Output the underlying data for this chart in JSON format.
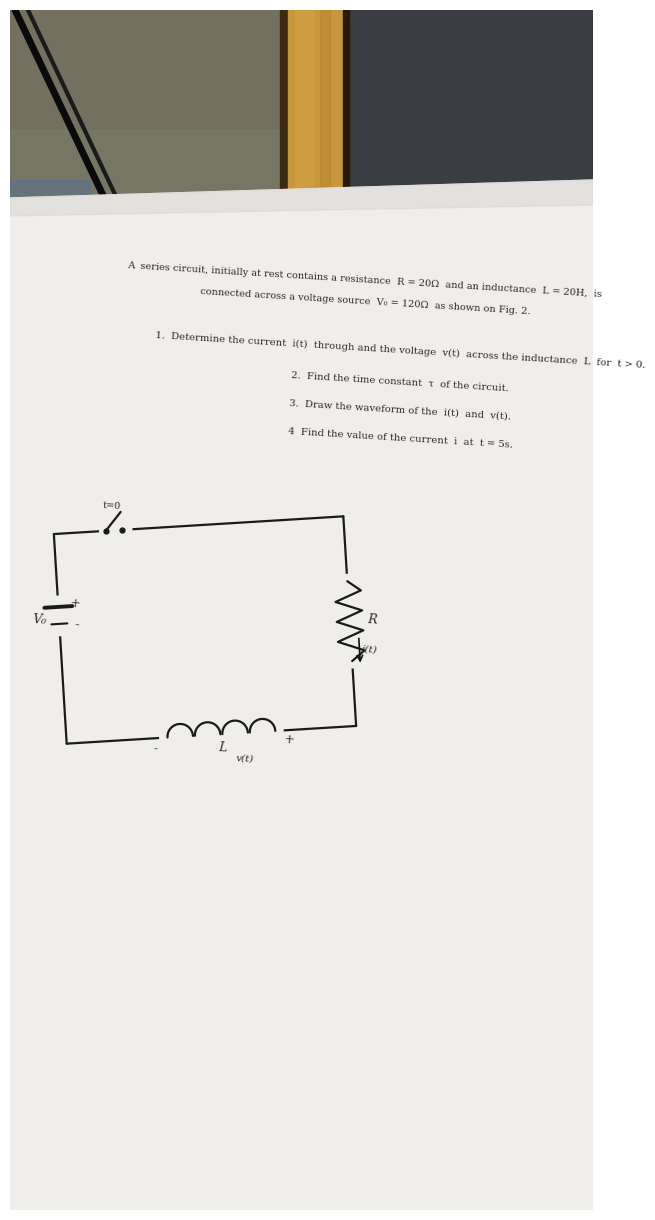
{
  "bg_left_color": "#6b7060",
  "bg_right_color": "#3a3e42",
  "wood_color": "#c8963c",
  "wood_dark": "#5a4020",
  "cable_color": "#1a1a1a",
  "paper_color": "#f0eeeb",
  "text_color": "#2a2a2a",
  "line_color": "#111111",
  "title_line1": "A  series circuit, initially at rest contains a resistance  R = 20Ω  and an inductance  L = 20H,  is",
  "title_line2": "connected across a voltage source  V₀ = 120Ω  as shown on Fig. 2.",
  "q1": "1.  Determine the current  i(t)  through and the voltage  v(t)  across the inductance  L  for  t > 0.",
  "q2": "2.  Find the time constant  τ  of the circuit.",
  "q3": "3.  Draw the waveform of the  i(t)  and  v(t).",
  "q4": "4  Find the value of the current  i  at  t = 5s.",
  "label_vs": "V₀",
  "label_t0": "t=0",
  "label_R": "R",
  "label_it": "i(t)",
  "label_L": "L",
  "label_vt": "v(t)",
  "label_plus": "+",
  "label_minus": "-",
  "text_rotation": -3.5,
  "circuit_rotation": -3.5
}
